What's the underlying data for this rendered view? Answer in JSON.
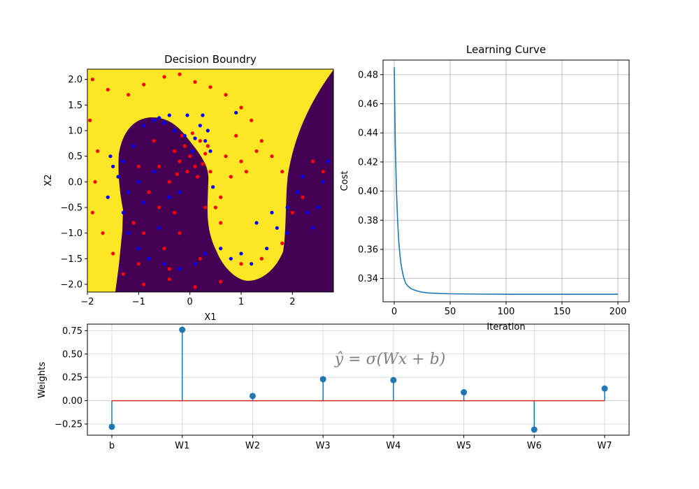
{
  "colors": {
    "yellow": "#fde725",
    "purple": "#440154",
    "red": "#ff0000",
    "blue": "#0000ff",
    "line": "#1f77b4",
    "baseline": "#d62728",
    "grid": "#b0b0b0",
    "formula": "#808080"
  },
  "chart_data": [
    {
      "type": "scatter",
      "title": "Decision Boundry",
      "xlabel": "X1",
      "ylabel": "X2",
      "xlim": [
        -2.0,
        2.8
      ],
      "ylim": [
        -2.15,
        2.2
      ],
      "xticks": [
        -2,
        -1,
        0,
        1,
        2
      ],
      "yticks": [
        -2.0,
        -1.5,
        -1.0,
        -0.5,
        0.0,
        0.5,
        1.0,
        1.5,
        2.0
      ],
      "background": "filled decision regions (yellow / purple)",
      "series": [
        {
          "color": "red",
          "points": [
            [
              -1.9,
              2.0
            ],
            [
              -1.6,
              1.8
            ],
            [
              -1.2,
              1.7
            ],
            [
              -0.9,
              1.9
            ],
            [
              -0.5,
              2.05
            ],
            [
              -0.2,
              2.1
            ],
            [
              0.1,
              1.95
            ],
            [
              0.4,
              1.85
            ],
            [
              0.7,
              1.7
            ],
            [
              1.0,
              1.45
            ],
            [
              1.2,
              1.2
            ],
            [
              1.4,
              0.8
            ],
            [
              1.6,
              0.5
            ],
            [
              1.8,
              0.2
            ],
            [
              -1.95,
              1.2
            ],
            [
              -1.8,
              0.6
            ],
            [
              -1.85,
              0.0
            ],
            [
              -1.9,
              -0.6
            ],
            [
              -1.7,
              -1.0
            ],
            [
              -1.5,
              -1.4
            ],
            [
              -1.3,
              -1.8
            ],
            [
              -0.9,
              -2.0
            ],
            [
              -0.4,
              -1.9
            ],
            [
              0.1,
              -2.05
            ],
            [
              0.6,
              -1.95
            ],
            [
              1.0,
              -1.6
            ],
            [
              1.4,
              -1.5
            ],
            [
              1.8,
              -1.2
            ],
            [
              2.0,
              -0.6
            ],
            [
              2.2,
              -0.3
            ],
            [
              2.4,
              0.4
            ],
            [
              2.6,
              0.2
            ],
            [
              -0.3,
              0.6
            ],
            [
              -0.2,
              0.4
            ],
            [
              -0.1,
              0.7
            ],
            [
              0.0,
              0.5
            ],
            [
              0.1,
              0.3
            ],
            [
              0.2,
              0.8
            ],
            [
              0.3,
              0.55
            ],
            [
              -0.05,
              0.2
            ],
            [
              0.15,
              0.1
            ],
            [
              -0.15,
              0.9
            ],
            [
              0.05,
              0.95
            ],
            [
              0.25,
              0.35
            ],
            [
              -0.25,
              0.15
            ],
            [
              0.35,
              0.7
            ],
            [
              0.5,
              -0.5
            ],
            [
              0.6,
              -0.3
            ],
            [
              0.8,
              0.1
            ],
            [
              1.0,
              0.4
            ],
            [
              1.1,
              0.2
            ],
            [
              0.7,
              0.5
            ],
            [
              0.9,
              0.9
            ],
            [
              1.3,
              0.6
            ],
            [
              0.4,
              0.2
            ],
            [
              0.6,
              -0.8
            ],
            [
              -0.8,
              -0.2
            ],
            [
              -0.6,
              -0.5
            ],
            [
              -0.4,
              0.0
            ],
            [
              -1.0,
              0.3
            ],
            [
              -0.7,
              0.8
            ],
            [
              -0.3,
              -0.6
            ],
            [
              -0.9,
              -1.0
            ],
            [
              -0.5,
              -1.3
            ],
            [
              -0.2,
              -1.0
            ],
            [
              0.2,
              -1.5
            ],
            [
              -1.1,
              -0.8
            ],
            [
              -0.6,
              0.3
            ],
            [
              0.3,
              -0.5
            ],
            [
              -0.4,
              -1.7
            ],
            [
              -1.0,
              -1.6
            ]
          ]
        },
        {
          "color": "blue",
          "points": [
            [
              -0.9,
              1.1
            ],
            [
              -0.7,
              1.2
            ],
            [
              -0.5,
              1.15
            ],
            [
              -0.3,
              1.0
            ],
            [
              -0.1,
              0.9
            ],
            [
              0.1,
              0.85
            ],
            [
              0.3,
              0.8
            ],
            [
              0.4,
              0.6
            ],
            [
              0.35,
              1.0
            ],
            [
              0.2,
              1.1
            ],
            [
              -0.6,
              1.25
            ],
            [
              -1.1,
              0.7
            ],
            [
              -1.3,
              0.4
            ],
            [
              -1.4,
              0.1
            ],
            [
              -1.5,
              0.3
            ],
            [
              -1.2,
              -0.2
            ],
            [
              -1.3,
              -0.6
            ],
            [
              -1.2,
              -1.0
            ],
            [
              -1.0,
              -1.3
            ],
            [
              -0.8,
              -1.5
            ],
            [
              -0.5,
              -1.6
            ],
            [
              -0.2,
              -1.7
            ],
            [
              0.1,
              -1.6
            ],
            [
              0.3,
              -1.4
            ],
            [
              -0.6,
              -0.9
            ],
            [
              -0.9,
              -0.4
            ],
            [
              -0.4,
              -0.3
            ],
            [
              -0.7,
              0.2
            ],
            [
              -0.2,
              -0.2
            ],
            [
              -1.0,
              0.0
            ],
            [
              0.6,
              -1.3
            ],
            [
              0.8,
              -1.5
            ],
            [
              1.0,
              -1.4
            ],
            [
              1.2,
              -1.6
            ],
            [
              1.5,
              -1.3
            ],
            [
              1.7,
              -0.9
            ],
            [
              1.6,
              -0.6
            ],
            [
              1.3,
              -0.8
            ],
            [
              1.9,
              -0.5
            ],
            [
              2.1,
              -0.2
            ],
            [
              2.3,
              -0.6
            ],
            [
              2.5,
              -0.5
            ],
            [
              2.6,
              0.0
            ],
            [
              2.7,
              0.4
            ],
            [
              2.2,
              0.1
            ],
            [
              2.4,
              -0.9
            ],
            [
              1.9,
              -1.0
            ],
            [
              -1.55,
              0.5
            ],
            [
              -1.6,
              -0.3
            ],
            [
              -0.05,
              1.3
            ],
            [
              0.25,
              1.3
            ],
            [
              -0.4,
              1.3
            ],
            [
              0.9,
              1.35
            ],
            [
              0.45,
              -0.1
            ],
            [
              0.05,
              0.6
            ]
          ]
        }
      ]
    },
    {
      "type": "line",
      "title": "Learning Curve",
      "xlabel": "Iteration",
      "ylabel": "Cost",
      "xlim": [
        -10,
        210
      ],
      "ylim": [
        0.324,
        0.49
      ],
      "xticks": [
        0,
        50,
        100,
        150,
        200
      ],
      "yticks": [
        0.34,
        0.36,
        0.38,
        0.4,
        0.42,
        0.44,
        0.46,
        0.48
      ],
      "grid": true,
      "series": [
        {
          "x": [
            0,
            1,
            2,
            3,
            4,
            5,
            6,
            8,
            10,
            12,
            15,
            20,
            25,
            30,
            40,
            50,
            75,
            100,
            150,
            200
          ],
          "y": [
            0.485,
            0.43,
            0.4,
            0.38,
            0.366,
            0.357,
            0.35,
            0.342,
            0.337,
            0.335,
            0.333,
            0.3315,
            0.3306,
            0.3301,
            0.3297,
            0.3295,
            0.3293,
            0.3292,
            0.3292,
            0.3292
          ]
        }
      ]
    },
    {
      "type": "stem",
      "title": "",
      "xlabel": "",
      "ylabel": "Weights",
      "annotation": "ŷ = σ(Wx + b)",
      "categories": [
        "b",
        "W1",
        "W2",
        "W3",
        "W4",
        "W5",
        "W6",
        "W7"
      ],
      "values": [
        -0.28,
        0.76,
        0.05,
        0.23,
        0.22,
        0.09,
        -0.31,
        0.13
      ],
      "ylim": [
        -0.37,
        0.82
      ],
      "yticks": [
        -0.25,
        0.0,
        0.25,
        0.5,
        0.75
      ],
      "grid": true
    }
  ]
}
